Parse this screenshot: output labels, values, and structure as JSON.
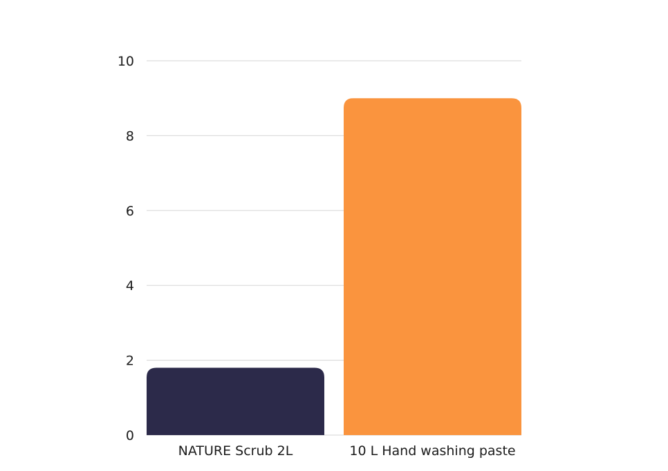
{
  "chart_data": {
    "type": "bar",
    "title": "",
    "xlabel": "",
    "ylabel": "",
    "categories": [
      "NATURE Scrub 2L",
      "10 L Hand washing paste"
    ],
    "values": [
      1.8,
      9
    ],
    "colors": [
      "#2c2a4a",
      "#fa943e"
    ],
    "ylim": [
      0,
      10
    ],
    "yticks": [
      0,
      2,
      4,
      6,
      8,
      10
    ],
    "grid": true,
    "legend": "none"
  }
}
